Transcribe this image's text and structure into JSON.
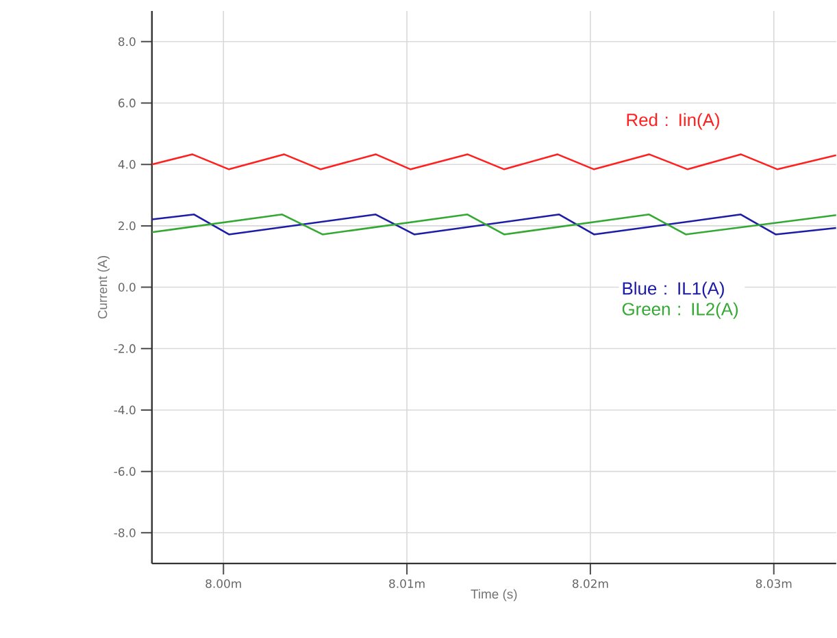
{
  "chart_data": {
    "type": "line",
    "xlabel": "Time (s)",
    "ylabel": "Current (A)",
    "xlim": [
      7.9961,
      8.0334
    ],
    "ylim": [
      -9,
      9
    ],
    "xticks": [
      {
        "value": 8.0,
        "label": "8.00m"
      },
      {
        "value": 8.01,
        "label": "8.01m"
      },
      {
        "value": 8.02,
        "label": "8.02m"
      },
      {
        "value": 8.03,
        "label": "8.03m"
      }
    ],
    "yticks": [
      {
        "value": -8,
        "label": "-8.0"
      },
      {
        "value": -6,
        "label": "-6.0"
      },
      {
        "value": -4,
        "label": "-4.0"
      },
      {
        "value": -2,
        "label": "-2.0"
      },
      {
        "value": 0,
        "label": "0.0"
      },
      {
        "value": 2,
        "label": "2.0"
      },
      {
        "value": 4,
        "label": "4.0"
      },
      {
        "value": 6,
        "label": "6.0"
      },
      {
        "value": 8,
        "label": "8.0"
      }
    ],
    "grid": true,
    "marker": "none",
    "line_style": "solid",
    "series": [
      {
        "name": "Red : Iin(A)",
        "color": "#ff2020",
        "x": [
          7.9961,
          7.9983,
          8.0003,
          8.0033,
          8.0053,
          8.0083,
          8.0102,
          8.0133,
          8.0153,
          8.0182,
          8.0202,
          8.0232,
          8.0253,
          8.0282,
          8.0302,
          8.0334
        ],
        "values": [
          4.0,
          4.33,
          3.84,
          4.33,
          3.84,
          4.33,
          3.84,
          4.33,
          3.84,
          4.33,
          3.84,
          4.33,
          3.84,
          4.33,
          3.84,
          4.3
        ]
      },
      {
        "name": "Blue : IL1(A)",
        "color": "#1c1ca6",
        "x": [
          7.9961,
          7.9984,
          8.0003,
          8.0083,
          8.0104,
          8.0183,
          8.0202,
          8.0282,
          8.0301,
          8.0334
        ],
        "values": [
          2.21,
          2.37,
          1.72,
          2.37,
          1.72,
          2.37,
          1.72,
          2.37,
          1.72,
          1.93
        ]
      },
      {
        "name": "Green : IL2(A)",
        "color": "#33a833",
        "x": [
          7.9961,
          8.0032,
          8.0054,
          8.0133,
          8.0153,
          8.0232,
          8.0252,
          8.0334
        ],
        "values": [
          1.79,
          2.37,
          1.72,
          2.37,
          1.72,
          2.37,
          1.72,
          2.35
        ]
      }
    ]
  }
}
